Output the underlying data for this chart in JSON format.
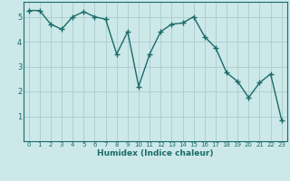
{
  "x": [
    0,
    1,
    2,
    3,
    4,
    5,
    6,
    7,
    8,
    9,
    10,
    11,
    12,
    13,
    14,
    15,
    16,
    17,
    18,
    19,
    20,
    21,
    22,
    23
  ],
  "y": [
    5.25,
    5.25,
    4.7,
    4.5,
    5.0,
    5.2,
    5.0,
    4.9,
    3.5,
    4.4,
    2.2,
    3.5,
    4.4,
    4.7,
    4.75,
    5.0,
    4.2,
    3.75,
    2.75,
    2.4,
    1.75,
    2.35,
    2.7,
    0.85
  ],
  "line_color": "#1a6b6b",
  "marker": "+",
  "marker_size": 4,
  "marker_lw": 1.0,
  "line_width": 1.0,
  "bg_color": "#cce8e8",
  "grid_color": "#b0d0d0",
  "xlabel": "Humidex (Indice chaleur)",
  "xlabel_fontsize": 6.5,
  "xlabel_color": "#1a6b6b",
  "tick_color": "#1a6b6b",
  "tick_fontsize": 5.0,
  "ytick_fontsize": 6.0,
  "ylim": [
    0,
    5.6
  ],
  "yticks": [
    1,
    2,
    3,
    4,
    5
  ],
  "xticks": [
    0,
    1,
    2,
    3,
    4,
    5,
    6,
    7,
    8,
    9,
    10,
    11,
    12,
    13,
    14,
    15,
    16,
    17,
    18,
    19,
    20,
    21,
    22,
    23
  ]
}
